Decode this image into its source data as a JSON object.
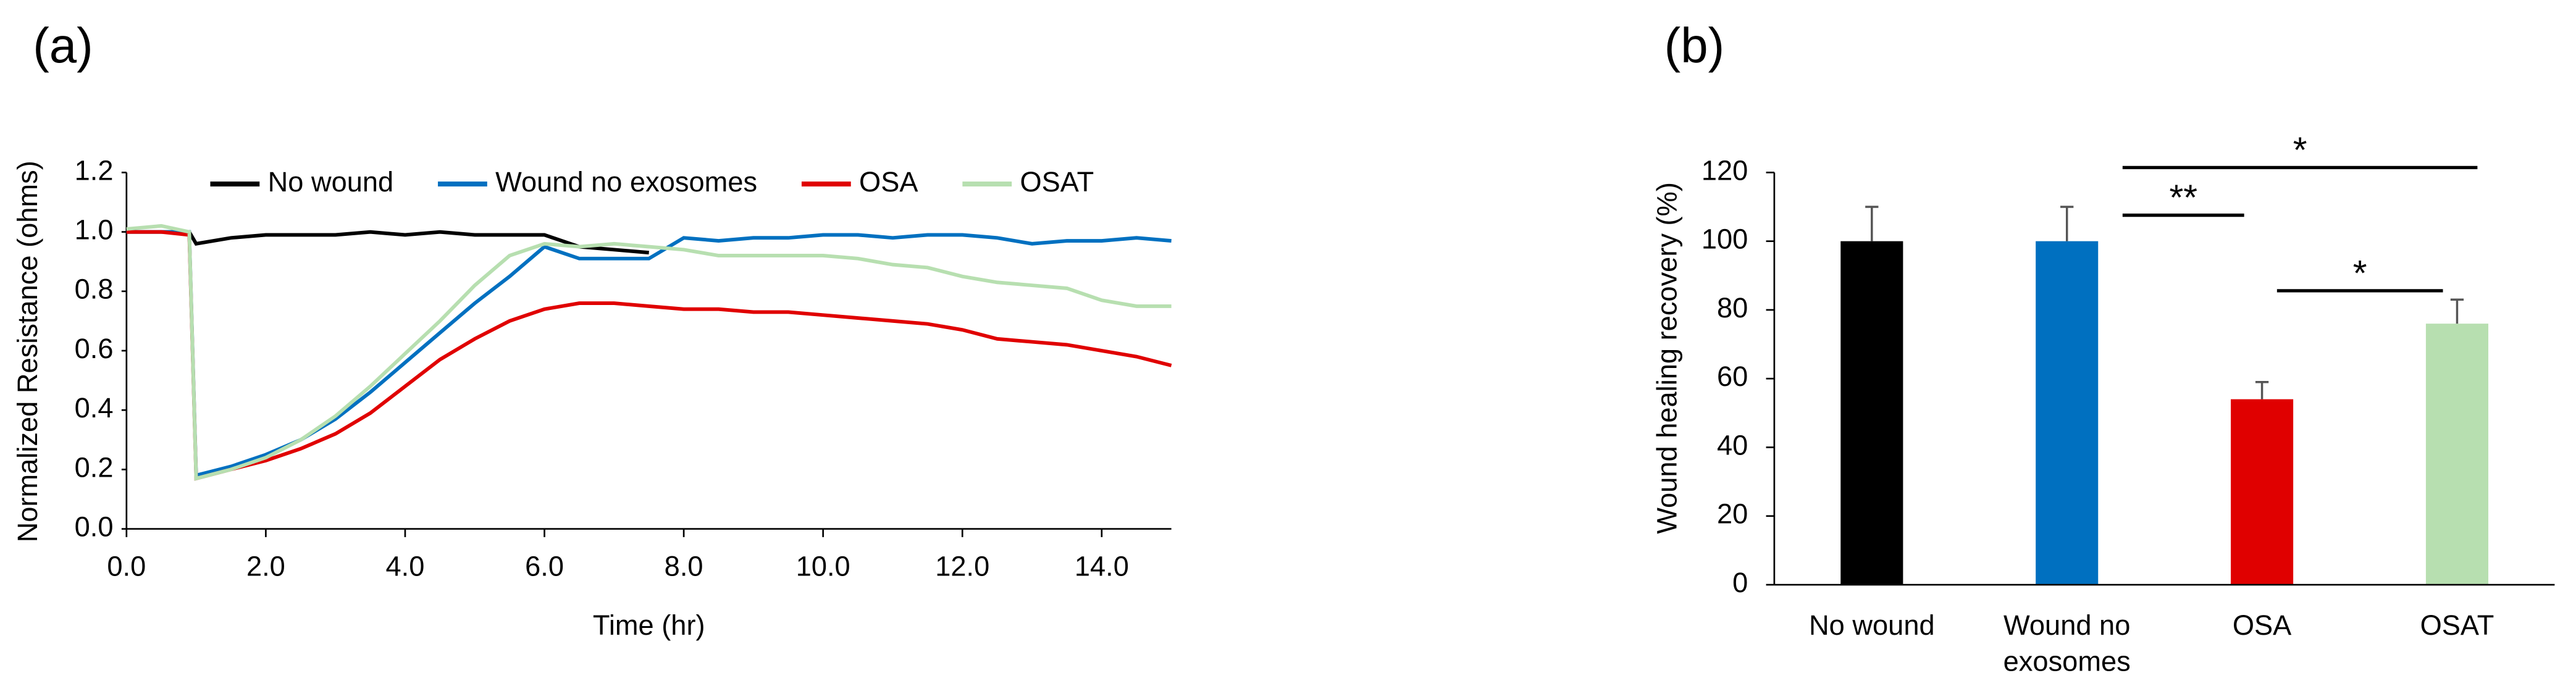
{
  "chart_data": [
    {
      "type": "line",
      "panel_label": "(a)",
      "x_label": "Time (hr)",
      "y_label": "Normalized Resistance (ohms)",
      "x": [
        0,
        0.5,
        0.9,
        1.0,
        1.5,
        2.0,
        2.5,
        3.0,
        3.5,
        4.0,
        4.5,
        5.0,
        5.5,
        6.0,
        6.5,
        7.0,
        7.5,
        8.0,
        8.5,
        9.0,
        9.5,
        10.0,
        10.5,
        11.0,
        11.5,
        12.0,
        12.5,
        13.0,
        13.5,
        14.0,
        14.5,
        15.0
      ],
      "xlim": [
        0,
        15
      ],
      "xticks": [
        {
          "value": 0,
          "label": "0.0"
        },
        {
          "value": 2,
          "label": "2.0"
        },
        {
          "value": 4,
          "label": "4.0"
        },
        {
          "value": 6,
          "label": "6.0"
        },
        {
          "value": 8,
          "label": "8.0"
        },
        {
          "value": 10,
          "label": "10.0"
        },
        {
          "value": 12,
          "label": "12.0"
        },
        {
          "value": 14,
          "label": "14.0"
        }
      ],
      "ylim": [
        0,
        1.2
      ],
      "yticks": [
        {
          "value": 0,
          "label": "0.0"
        },
        {
          "value": 0.2,
          "label": "0.2"
        },
        {
          "value": 0.4,
          "label": "0.4"
        },
        {
          "value": 0.6,
          "label": "0.6"
        },
        {
          "value": 0.8,
          "label": "0.8"
        },
        {
          "value": 1.0,
          "label": "1.0"
        },
        {
          "value": 1.2,
          "label": "1.2"
        }
      ],
      "series": [
        {
          "name": "No wound",
          "color": "#000000",
          "values": [
            1.0,
            1.0,
            1.0,
            0.96,
            0.98,
            0.99,
            0.99,
            0.99,
            1.0,
            0.99,
            1.0,
            0.99,
            0.99,
            0.99,
            0.95,
            0.94,
            0.93,
            null,
            null,
            null,
            null,
            null,
            null,
            null,
            null,
            null,
            null,
            null,
            null,
            null,
            null,
            null
          ]
        },
        {
          "name": "Wound no exosomes",
          "color": "#0070c0",
          "values": [
            1.0,
            1.0,
            1.0,
            0.18,
            0.21,
            0.25,
            0.3,
            0.37,
            0.46,
            0.56,
            0.66,
            0.76,
            0.85,
            0.95,
            0.91,
            0.91,
            0.91,
            0.98,
            0.97,
            0.98,
            0.98,
            0.99,
            0.99,
            0.98,
            0.99,
            0.99,
            0.98,
            0.96,
            0.97,
            0.97,
            0.98,
            0.97
          ]
        },
        {
          "name": "OSA",
          "color": "#e00000",
          "values": [
            1.0,
            1.0,
            0.99,
            0.17,
            0.2,
            0.23,
            0.27,
            0.32,
            0.39,
            0.48,
            0.57,
            0.64,
            0.7,
            0.74,
            0.76,
            0.76,
            0.75,
            0.74,
            0.74,
            0.73,
            0.73,
            0.72,
            0.71,
            0.7,
            0.69,
            0.67,
            0.64,
            0.63,
            0.62,
            0.6,
            0.58,
            0.55
          ]
        },
        {
          "name": "OSAT",
          "color": "#b7dfb0",
          "values": [
            1.01,
            1.02,
            1.0,
            0.17,
            0.2,
            0.24,
            0.3,
            0.38,
            0.48,
            0.59,
            0.7,
            0.82,
            0.92,
            0.96,
            0.95,
            0.96,
            0.95,
            0.94,
            0.92,
            0.92,
            0.92,
            0.92,
            0.91,
            0.89,
            0.88,
            0.85,
            0.83,
            0.82,
            0.81,
            0.77,
            0.75,
            0.75
          ]
        }
      ]
    },
    {
      "type": "bar",
      "panel_label": "(b)",
      "y_label": "Wound healing recovery (%)",
      "categories": [
        "No wound",
        "Wound no exosomes",
        "OSA",
        "OSAT"
      ],
      "values": [
        100,
        100,
        54,
        76
      ],
      "errors": [
        10,
        10,
        5,
        7
      ],
      "colors": [
        "#000000",
        "#0070c0",
        "#e00000",
        "#b7dfb0"
      ],
      "ylim": [
        0,
        120
      ],
      "yticks": [
        0,
        20,
        40,
        60,
        80,
        100,
        120
      ],
      "annotations": [
        {
          "text": "*"
        },
        {
          "text": "**"
        },
        {
          "text": "*"
        }
      ]
    }
  ]
}
